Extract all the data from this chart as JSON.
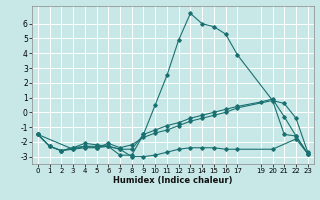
{
  "background_color": "#c8e8e8",
  "grid_color": "#ffffff",
  "line_color": "#1a7070",
  "xlabel": "Humidex (Indice chaleur)",
  "ylim": [
    -3.5,
    7.2
  ],
  "yticks": [
    -3,
    -2,
    -1,
    0,
    1,
    2,
    3,
    4,
    5,
    6
  ],
  "xlim": [
    -0.5,
    23.5
  ],
  "x_tick_positions": [
    0,
    1,
    2,
    3,
    4,
    5,
    6,
    7,
    8,
    9,
    10,
    11,
    12,
    13,
    14,
    15,
    16,
    17,
    19,
    20,
    21,
    22,
    23
  ],
  "x_tick_labels": [
    "0",
    "1",
    "2",
    "3",
    "4",
    "5",
    "6",
    "7",
    "8",
    "9",
    "10",
    "11",
    "12",
    "13",
    "14",
    "15",
    "16",
    "17",
    "19",
    "20",
    "21",
    "22",
    "23"
  ],
  "series": [
    {
      "x": [
        0,
        1,
        2,
        3,
        4,
        5,
        6,
        7,
        8,
        9,
        10,
        11,
        12,
        13,
        14,
        15,
        16,
        17,
        20,
        21,
        22,
        23
      ],
      "y": [
        -1.5,
        -2.3,
        -2.6,
        -2.4,
        -2.1,
        -2.2,
        -2.3,
        -2.9,
        -2.9,
        -1.5,
        0.5,
        2.5,
        4.9,
        6.7,
        6.0,
        5.8,
        5.3,
        3.9,
        0.8,
        -1.5,
        -1.6,
        -2.8
      ]
    },
    {
      "x": [
        0,
        1,
        2,
        3,
        4,
        5,
        6,
        7,
        8,
        9,
        10,
        11,
        12,
        13,
        14,
        15,
        16,
        17,
        20,
        21,
        22,
        23
      ],
      "y": [
        -1.5,
        -2.3,
        -2.6,
        -2.4,
        -2.3,
        -2.4,
        -2.1,
        -2.4,
        -2.2,
        -1.7,
        -1.4,
        -1.2,
        -0.9,
        -0.6,
        -0.4,
        -0.2,
        0.0,
        0.3,
        0.8,
        0.6,
        -0.4,
        -2.7
      ]
    },
    {
      "x": [
        0,
        3,
        4,
        5,
        6,
        7,
        8,
        9,
        10,
        11,
        12,
        13,
        14,
        15,
        16,
        17,
        20,
        22,
        23
      ],
      "y": [
        -1.5,
        -2.5,
        -2.4,
        -2.4,
        -2.3,
        -2.5,
        -3.0,
        -3.0,
        -2.9,
        -2.7,
        -2.5,
        -2.4,
        -2.4,
        -2.4,
        -2.5,
        -2.5,
        -2.5,
        -1.8,
        -2.8
      ]
    },
    {
      "x": [
        0,
        1,
        2,
        3,
        4,
        5,
        6,
        7,
        8,
        9,
        10,
        11,
        12,
        13,
        14,
        15,
        16,
        17,
        19,
        20,
        21,
        22,
        23
      ],
      "y": [
        -1.5,
        -2.3,
        -2.6,
        -2.5,
        -2.3,
        -2.3,
        -2.3,
        -2.5,
        -2.5,
        -1.5,
        -1.2,
        -0.9,
        -0.7,
        -0.4,
        -0.2,
        0.0,
        0.2,
        0.4,
        0.7,
        0.9,
        -0.3,
        -1.6,
        -2.8
      ]
    }
  ]
}
